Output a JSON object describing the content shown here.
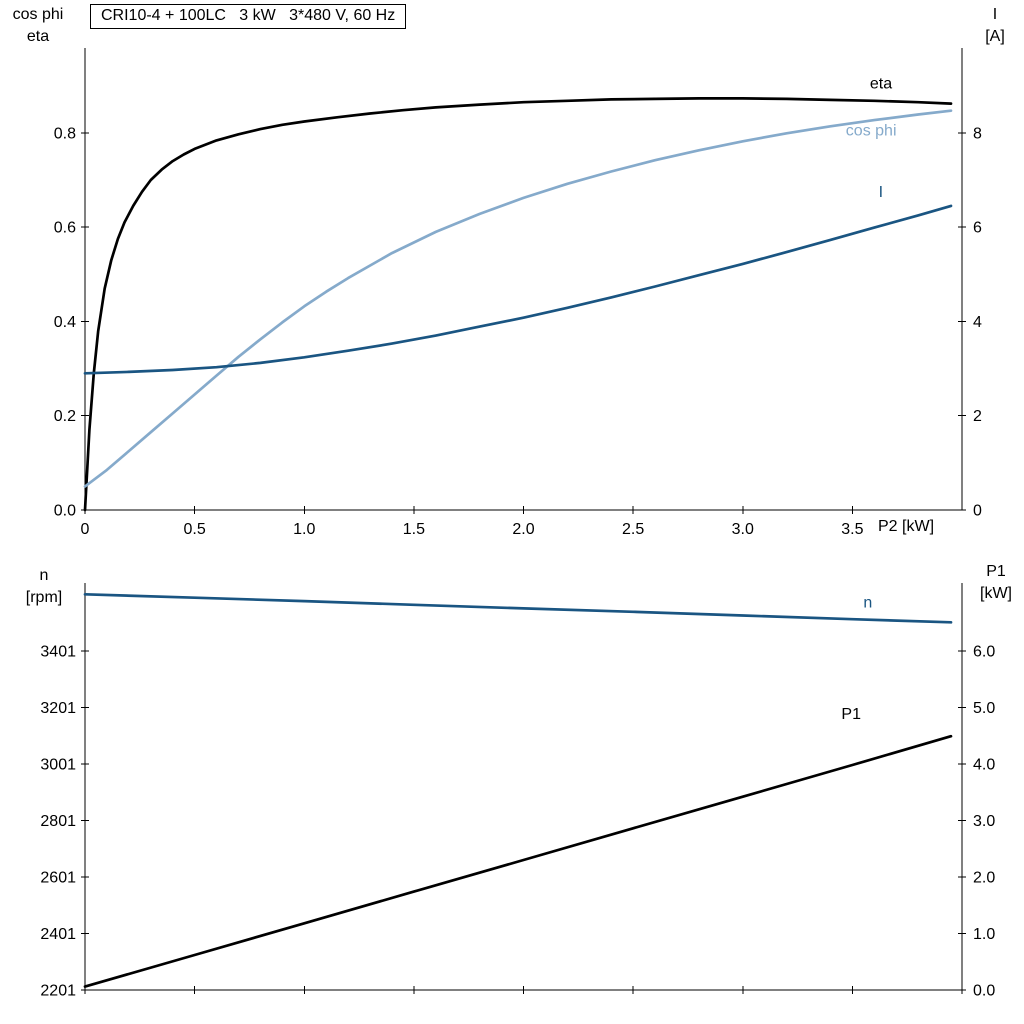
{
  "chart_data": [
    {
      "type": "line",
      "title": "CRI10-4 + 100LC   3 kW   3*480 V, 60 Hz",
      "x_axis": {
        "label": "P2 [kW]",
        "range": [
          0,
          4.0
        ],
        "ticks": [
          0,
          0.5,
          1.0,
          1.5,
          2.0,
          2.5,
          3.0,
          3.5
        ],
        "tick_labels": [
          "0",
          "0.5",
          "1.0",
          "1.5",
          "2.0",
          "2.5",
          "3.0",
          "3.5"
        ]
      },
      "y_left": {
        "title_lines": [
          "cos phi",
          "eta"
        ],
        "range": [
          0,
          0.98
        ],
        "ticks": [
          0.0,
          0.2,
          0.4,
          0.6,
          0.8
        ],
        "tick_labels": [
          "0.0",
          "0.2",
          "0.4",
          "0.6",
          "0.8"
        ]
      },
      "y_right": {
        "title_lines": [
          "I",
          "[A]"
        ],
        "range": [
          0,
          9.8
        ],
        "ticks": [
          0,
          2,
          4,
          6,
          8
        ],
        "tick_labels": [
          "0",
          "2",
          "4",
          "6",
          "8"
        ]
      },
      "grid": false,
      "series": [
        {
          "name": "eta",
          "label": "eta",
          "color": "#000000",
          "axis": "left",
          "label_at": {
            "x": 3.58,
            "y": 0.905
          },
          "points": [
            [
              0,
              0.0
            ],
            [
              0.02,
              0.17
            ],
            [
              0.04,
              0.29
            ],
            [
              0.06,
              0.38
            ],
            [
              0.09,
              0.47
            ],
            [
              0.12,
              0.53
            ],
            [
              0.15,
              0.575
            ],
            [
              0.18,
              0.61
            ],
            [
              0.22,
              0.645
            ],
            [
              0.26,
              0.675
            ],
            [
              0.3,
              0.7
            ],
            [
              0.35,
              0.722
            ],
            [
              0.4,
              0.74
            ],
            [
              0.45,
              0.754
            ],
            [
              0.5,
              0.766
            ],
            [
              0.6,
              0.784
            ],
            [
              0.7,
              0.797
            ],
            [
              0.8,
              0.808
            ],
            [
              0.9,
              0.817
            ],
            [
              1.0,
              0.824
            ],
            [
              1.15,
              0.833
            ],
            [
              1.3,
              0.841
            ],
            [
              1.45,
              0.848
            ],
            [
              1.6,
              0.854
            ],
            [
              1.8,
              0.86
            ],
            [
              2.0,
              0.865
            ],
            [
              2.2,
              0.868
            ],
            [
              2.4,
              0.871
            ],
            [
              2.6,
              0.872
            ],
            [
              2.8,
              0.873
            ],
            [
              3.0,
              0.873
            ],
            [
              3.2,
              0.872
            ],
            [
              3.4,
              0.87
            ],
            [
              3.6,
              0.868
            ],
            [
              3.8,
              0.865
            ],
            [
              3.95,
              0.862
            ]
          ]
        },
        {
          "name": "cos-phi",
          "label": "cos phi",
          "color": "#85aacb",
          "axis": "left",
          "label_at": {
            "x": 3.47,
            "y": 0.805
          },
          "points": [
            [
              0,
              0.05
            ],
            [
              0.1,
              0.085
            ],
            [
              0.2,
              0.125
            ],
            [
              0.3,
              0.165
            ],
            [
              0.4,
              0.205
            ],
            [
              0.5,
              0.245
            ],
            [
              0.6,
              0.285
            ],
            [
              0.7,
              0.325
            ],
            [
              0.8,
              0.362
            ],
            [
              0.9,
              0.398
            ],
            [
              1.0,
              0.432
            ],
            [
              1.1,
              0.463
            ],
            [
              1.2,
              0.492
            ],
            [
              1.4,
              0.545
            ],
            [
              1.6,
              0.59
            ],
            [
              1.8,
              0.628
            ],
            [
              2.0,
              0.662
            ],
            [
              2.2,
              0.692
            ],
            [
              2.4,
              0.718
            ],
            [
              2.6,
              0.742
            ],
            [
              2.8,
              0.763
            ],
            [
              3.0,
              0.782
            ],
            [
              3.2,
              0.799
            ],
            [
              3.4,
              0.814
            ],
            [
              3.6,
              0.827
            ],
            [
              3.8,
              0.839
            ],
            [
              3.95,
              0.847
            ]
          ]
        },
        {
          "name": "current",
          "label": "I",
          "color": "#1a5582",
          "axis": "right",
          "label_at": {
            "x": 3.62,
            "y": 6.75
          },
          "points": [
            [
              0,
              2.9
            ],
            [
              0.2,
              2.93
            ],
            [
              0.4,
              2.97
            ],
            [
              0.6,
              3.03
            ],
            [
              0.8,
              3.12
            ],
            [
              1.0,
              3.24
            ],
            [
              1.2,
              3.38
            ],
            [
              1.4,
              3.53
            ],
            [
              1.6,
              3.7
            ],
            [
              1.8,
              3.89
            ],
            [
              2.0,
              4.08
            ],
            [
              2.2,
              4.29
            ],
            [
              2.4,
              4.51
            ],
            [
              2.6,
              4.74
            ],
            [
              2.8,
              4.98
            ],
            [
              3.0,
              5.22
            ],
            [
              3.2,
              5.47
            ],
            [
              3.4,
              5.73
            ],
            [
              3.6,
              5.99
            ],
            [
              3.8,
              6.25
            ],
            [
              3.95,
              6.45
            ]
          ]
        }
      ]
    },
    {
      "type": "line",
      "title": "",
      "x_axis": {
        "label": "",
        "range": [
          0,
          4.0
        ],
        "ticks": [
          0,
          0.5,
          1.0,
          1.5,
          2.0,
          2.5,
          3.0,
          3.5,
          4.0
        ],
        "tick_labels": []
      },
      "y_left": {
        "title_lines": [
          "n",
          "[rpm]"
        ],
        "range": [
          2201,
          3641
        ],
        "ticks": [
          2201,
          2401,
          2601,
          2801,
          3001,
          3201,
          3401
        ],
        "tick_labels": [
          "2201",
          "2401",
          "2601",
          "2801",
          "3001",
          "3201",
          "3401"
        ]
      },
      "y_right": {
        "title_lines": [
          "P1",
          "[kW]"
        ],
        "range": [
          0,
          7.2
        ],
        "ticks": [
          0,
          1,
          2,
          3,
          4,
          5,
          6
        ],
        "tick_labels": [
          "0.0",
          "1.0",
          "2.0",
          "3.0",
          "4.0",
          "5.0",
          "6.0"
        ]
      },
      "grid": false,
      "series": [
        {
          "name": "speed",
          "label": "n",
          "color": "#1a5582",
          "axis": "left",
          "label_at": {
            "x": 3.55,
            "y": 3572
          },
          "points": [
            [
              0,
              3601
            ],
            [
              0.5,
              3589
            ],
            [
              1.0,
              3577
            ],
            [
              1.5,
              3564
            ],
            [
              2.0,
              3551
            ],
            [
              2.5,
              3539
            ],
            [
              3.0,
              3526
            ],
            [
              3.5,
              3513
            ],
            [
              3.95,
              3502
            ]
          ]
        },
        {
          "name": "p1-power",
          "label": "P1",
          "color": "#000000",
          "axis": "right",
          "label_at": {
            "x": 3.45,
            "y": 4.88
          },
          "points": [
            [
              0,
              0.06
            ],
            [
              0.5,
              0.62
            ],
            [
              1.0,
              1.18
            ],
            [
              1.5,
              1.74
            ],
            [
              2.0,
              2.3
            ],
            [
              2.5,
              2.86
            ],
            [
              3.0,
              3.42
            ],
            [
              3.5,
              3.98
            ],
            [
              3.95,
              4.49
            ]
          ]
        }
      ]
    }
  ]
}
